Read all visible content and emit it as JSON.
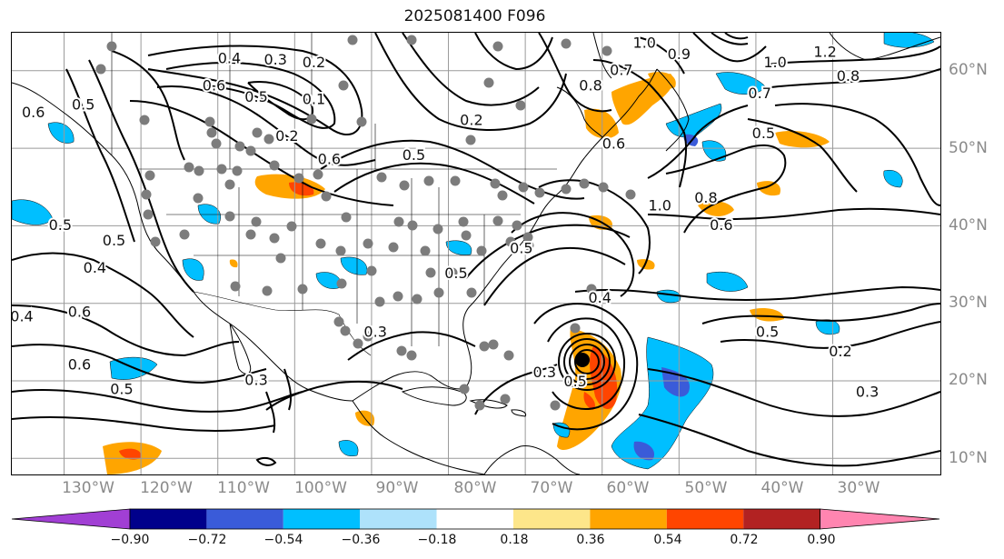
{
  "title": "2025081400 F096",
  "lon_labels": [
    "130°W",
    "120°W",
    "110°W",
    "100°W",
    "90°W",
    "80°W",
    "70°W",
    "60°W",
    "50°W",
    "40°W",
    "30°W"
  ],
  "lat_labels": [
    "60°N",
    "50°N",
    "40°N",
    "30°N",
    "20°N",
    "10°N"
  ],
  "colorbar": {
    "ticks": [
      "−0.90",
      "−0.72",
      "−0.54",
      "−0.36",
      "−0.18",
      "0.18",
      "0.36",
      "0.54",
      "0.72",
      "0.90"
    ],
    "colors": [
      "#a13fd4",
      "#00008b",
      "#3a5bd9",
      "#00bfff",
      "#aee2fb",
      "#ffffff",
      "#fde68a",
      "#ffa500",
      "#ff4500",
      "#b22222",
      "#ff85b0"
    ]
  },
  "contour_labels": [
    {
      "text": "0.4",
      "lon": -108.5,
      "lat": 61.5
    },
    {
      "text": "0.3",
      "lon": -102.5,
      "lat": 61.3
    },
    {
      "text": "0.2",
      "lon": -97.5,
      "lat": 61.0
    },
    {
      "text": "0.6",
      "lon": -110.5,
      "lat": 58.0
    },
    {
      "text": "0.5",
      "lon": -105.0,
      "lat": 56.5
    },
    {
      "text": "0.1",
      "lon": -97.5,
      "lat": 56.2
    },
    {
      "text": "0.2",
      "lon": -101.0,
      "lat": 51.5
    },
    {
      "text": "0.2",
      "lon": -77.0,
      "lat": 53.5
    },
    {
      "text": "0.6",
      "lon": -95.5,
      "lat": 48.5
    },
    {
      "text": "0.5",
      "lon": -84.5,
      "lat": 49.0
    },
    {
      "text": "0.5",
      "lon": -70.5,
      "lat": 37.0
    },
    {
      "text": "0.5",
      "lon": -79.0,
      "lat": 33.8
    },
    {
      "text": "0.6",
      "lon": -134.0,
      "lat": 54.5
    },
    {
      "text": "0.5",
      "lon": -127.5,
      "lat": 55.5
    },
    {
      "text": "0.5",
      "lon": -130.5,
      "lat": 40.0
    },
    {
      "text": "0.5",
      "lon": -123.5,
      "lat": 38.0
    },
    {
      "text": "0.4",
      "lon": -126.0,
      "lat": 34.5
    },
    {
      "text": "0.4",
      "lon": -135.5,
      "lat": 28.2
    },
    {
      "text": "0.6",
      "lon": -128.0,
      "lat": 28.8
    },
    {
      "text": "0.6",
      "lon": -128.0,
      "lat": 22.0
    },
    {
      "text": "0.5",
      "lon": -122.5,
      "lat": 18.8
    },
    {
      "text": "0.3",
      "lon": -89.5,
      "lat": 26.2
    },
    {
      "text": "0.3",
      "lon": -105.0,
      "lat": 20.0
    },
    {
      "text": "0.4",
      "lon": -60.3,
      "lat": 30.6
    },
    {
      "text": "0.8",
      "lon": -61.5,
      "lat": 58.0
    },
    {
      "text": "0.7",
      "lon": -57.5,
      "lat": 60.0
    },
    {
      "text": "0.6",
      "lon": -58.5,
      "lat": 50.5
    },
    {
      "text": "1.0",
      "lon": -54.5,
      "lat": 63.5
    },
    {
      "text": "0.9",
      "lon": -50.0,
      "lat": 62.0
    },
    {
      "text": "1.0",
      "lon": -37.5,
      "lat": 61.0
    },
    {
      "text": "1.2",
      "lon": -31.0,
      "lat": 62.3
    },
    {
      "text": "0.8",
      "lon": -28.0,
      "lat": 59.2
    },
    {
      "text": "0.7",
      "lon": -39.5,
      "lat": 57.0
    },
    {
      "text": "0.5",
      "lon": -39.0,
      "lat": 51.8
    },
    {
      "text": "1.0",
      "lon": -52.5,
      "lat": 42.5
    },
    {
      "text": "0.8",
      "lon": -46.5,
      "lat": 43.5
    },
    {
      "text": "0.6",
      "lon": -44.5,
      "lat": 40.0
    },
    {
      "text": "0.5",
      "lon": -38.5,
      "lat": 26.2
    },
    {
      "text": "0.2",
      "lon": -29.0,
      "lat": 23.7
    },
    {
      "text": "0.3",
      "lon": -25.5,
      "lat": 18.5
    },
    {
      "text": "0.3",
      "lon": -67.5,
      "lat": 21.0
    },
    {
      "text": "0.5",
      "lon": -63.5,
      "lat": 19.8
    }
  ]
}
